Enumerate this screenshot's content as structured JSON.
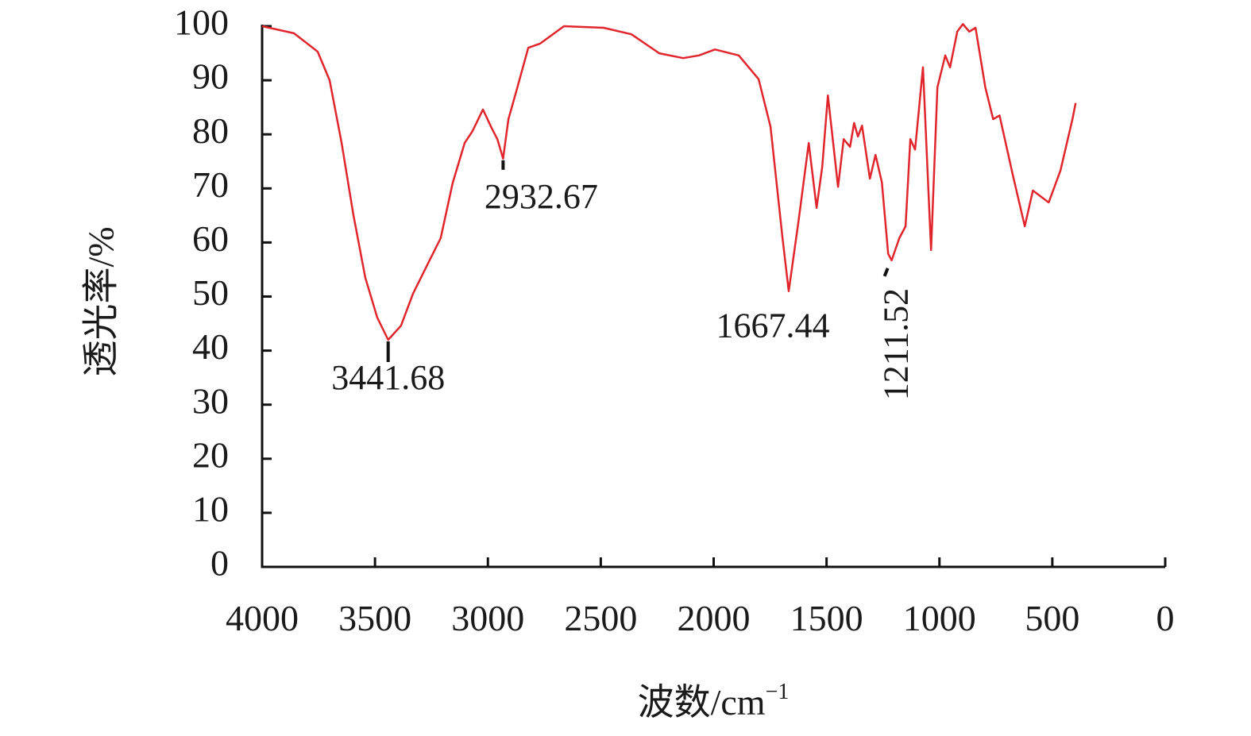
{
  "chart_data": {
    "type": "line",
    "y_label": "透光率/%",
    "x_label": {
      "text": "波数/cm",
      "sup": "−1"
    },
    "xlim": [
      4000,
      0
    ],
    "xticks": [
      4000,
      3500,
      3000,
      2500,
      2000,
      1500,
      1000,
      500,
      0
    ],
    "ylim": [
      0,
      100
    ],
    "yticks": [
      0,
      10,
      20,
      30,
      40,
      50,
      60,
      70,
      80,
      90,
      100
    ],
    "grid": false,
    "series": [
      {
        "name": null,
        "color": "#e0262c",
        "x": [
          4000,
          3859,
          3754,
          3701,
          3648,
          3596,
          3543,
          3490,
          3441.68,
          3385,
          3332,
          3262,
          3209,
          3156,
          3103,
          3068,
          3022,
          2986,
          2958,
          2932.67,
          2909,
          2874,
          2821,
          2768,
          2663,
          2487,
          2364,
          2241,
          2135,
          2065,
          1994,
          1889,
          1801,
          1748,
          1695,
          1667.44,
          1625,
          1579,
          1544,
          1519,
          1494,
          1449,
          1424,
          1396,
          1378,
          1361,
          1343,
          1308,
          1283,
          1255,
          1227,
          1211.52,
          1178,
          1150,
          1129,
          1108,
          1073,
          1037,
          1009,
          974,
          953,
          921,
          896,
          868,
          840,
          797,
          762,
          734,
          675,
          622,
          586,
          516,
          464,
          411,
          397
        ],
        "values": [
          100,
          98.7,
          95.3,
          90,
          78.4,
          65.2,
          53.5,
          46.1,
          42,
          44.6,
          50.5,
          56.4,
          60.8,
          71,
          78.4,
          80.6,
          84.6,
          81.4,
          79.1,
          75.5,
          82.8,
          88,
          96,
          96.8,
          100,
          99.7,
          98.5,
          95,
          94.1,
          94.6,
          95.7,
          94.6,
          90.2,
          81.4,
          60.8,
          51,
          63.7,
          78.4,
          66.4,
          74,
          87.2,
          70.3,
          79.1,
          77.7,
          82.1,
          79.6,
          81.6,
          71.8,
          76.2,
          71.1,
          57.9,
          56.7,
          60.8,
          63,
          79.1,
          77.2,
          92.4,
          58.6,
          88.7,
          94.6,
          92.4,
          99,
          100.4,
          99,
          99.7,
          88.7,
          82.8,
          83.5,
          72.5,
          63,
          69.6,
          67.4,
          73.3,
          82.8,
          85.8
        ]
      }
    ],
    "annotations": [
      {
        "x": 3441.68,
        "y": 42
      },
      {
        "x": 2932.67,
        "y": 75.5
      },
      {
        "x": 1667.44,
        "y": 51
      },
      {
        "x": 1211.52,
        "y": 56.7
      }
    ]
  }
}
